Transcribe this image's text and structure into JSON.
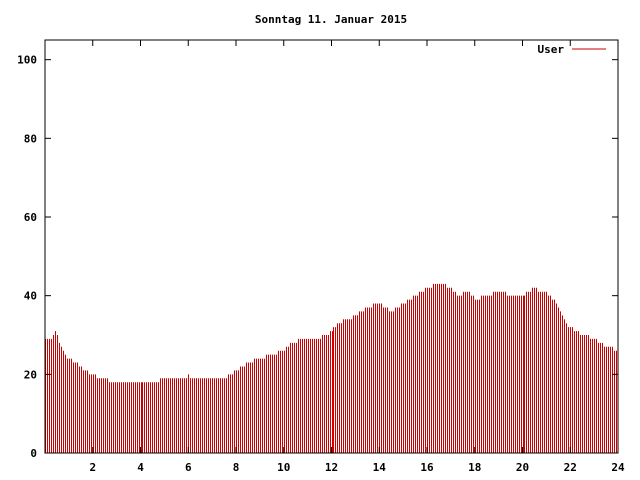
{
  "chart_data": {
    "type": "bar",
    "title": "Sonntag 11. Januar 2015",
    "xlabel": "",
    "ylabel": "",
    "xlim": [
      0,
      24
    ],
    "ylim": [
      0,
      105
    ],
    "x_ticks": [
      2,
      4,
      6,
      8,
      10,
      12,
      14,
      16,
      18,
      20,
      22,
      24
    ],
    "y_ticks": [
      0,
      20,
      40,
      60,
      80,
      100
    ],
    "grid": false,
    "legend_position": "top-right",
    "bar_color": "#cc0000",
    "series": [
      {
        "name": "User",
        "anchors": [
          [
            0.0,
            29
          ],
          [
            0.3,
            29
          ],
          [
            0.4,
            31
          ],
          [
            0.6,
            28
          ],
          [
            0.8,
            25
          ],
          [
            1.0,
            24
          ],
          [
            1.3,
            23
          ],
          [
            1.6,
            21
          ],
          [
            2.0,
            20
          ],
          [
            2.3,
            19
          ],
          [
            3.0,
            18
          ],
          [
            4.0,
            18
          ],
          [
            4.5,
            17.5
          ],
          [
            5.0,
            19
          ],
          [
            5.3,
            19
          ],
          [
            5.6,
            19
          ],
          [
            6.0,
            19.5
          ],
          [
            6.5,
            19
          ],
          [
            7.0,
            19
          ],
          [
            7.5,
            19
          ],
          [
            8.0,
            21
          ],
          [
            8.5,
            23
          ],
          [
            9.0,
            24
          ],
          [
            9.5,
            25
          ],
          [
            10.0,
            26
          ],
          [
            10.3,
            28
          ],
          [
            10.8,
            29
          ],
          [
            11.3,
            29
          ],
          [
            11.8,
            30
          ],
          [
            12.0,
            31
          ],
          [
            12.3,
            33
          ],
          [
            12.7,
            34
          ],
          [
            13.0,
            35
          ],
          [
            13.5,
            37
          ],
          [
            14.0,
            38
          ],
          [
            14.5,
            36
          ],
          [
            15.0,
            38
          ],
          [
            15.5,
            40
          ],
          [
            16.0,
            42
          ],
          [
            16.5,
            43
          ],
          [
            17.0,
            42
          ],
          [
            17.3,
            40
          ],
          [
            17.7,
            41
          ],
          [
            18.0,
            39
          ],
          [
            18.5,
            40
          ],
          [
            19.0,
            41
          ],
          [
            19.5,
            40
          ],
          [
            20.0,
            40
          ],
          [
            20.5,
            42
          ],
          [
            20.8,
            41
          ],
          [
            21.2,
            40
          ],
          [
            21.5,
            37
          ],
          [
            21.8,
            33
          ],
          [
            22.2,
            31
          ],
          [
            22.6,
            30
          ],
          [
            23.0,
            29
          ],
          [
            23.5,
            27
          ],
          [
            24.0,
            26
          ]
        ]
      }
    ]
  }
}
